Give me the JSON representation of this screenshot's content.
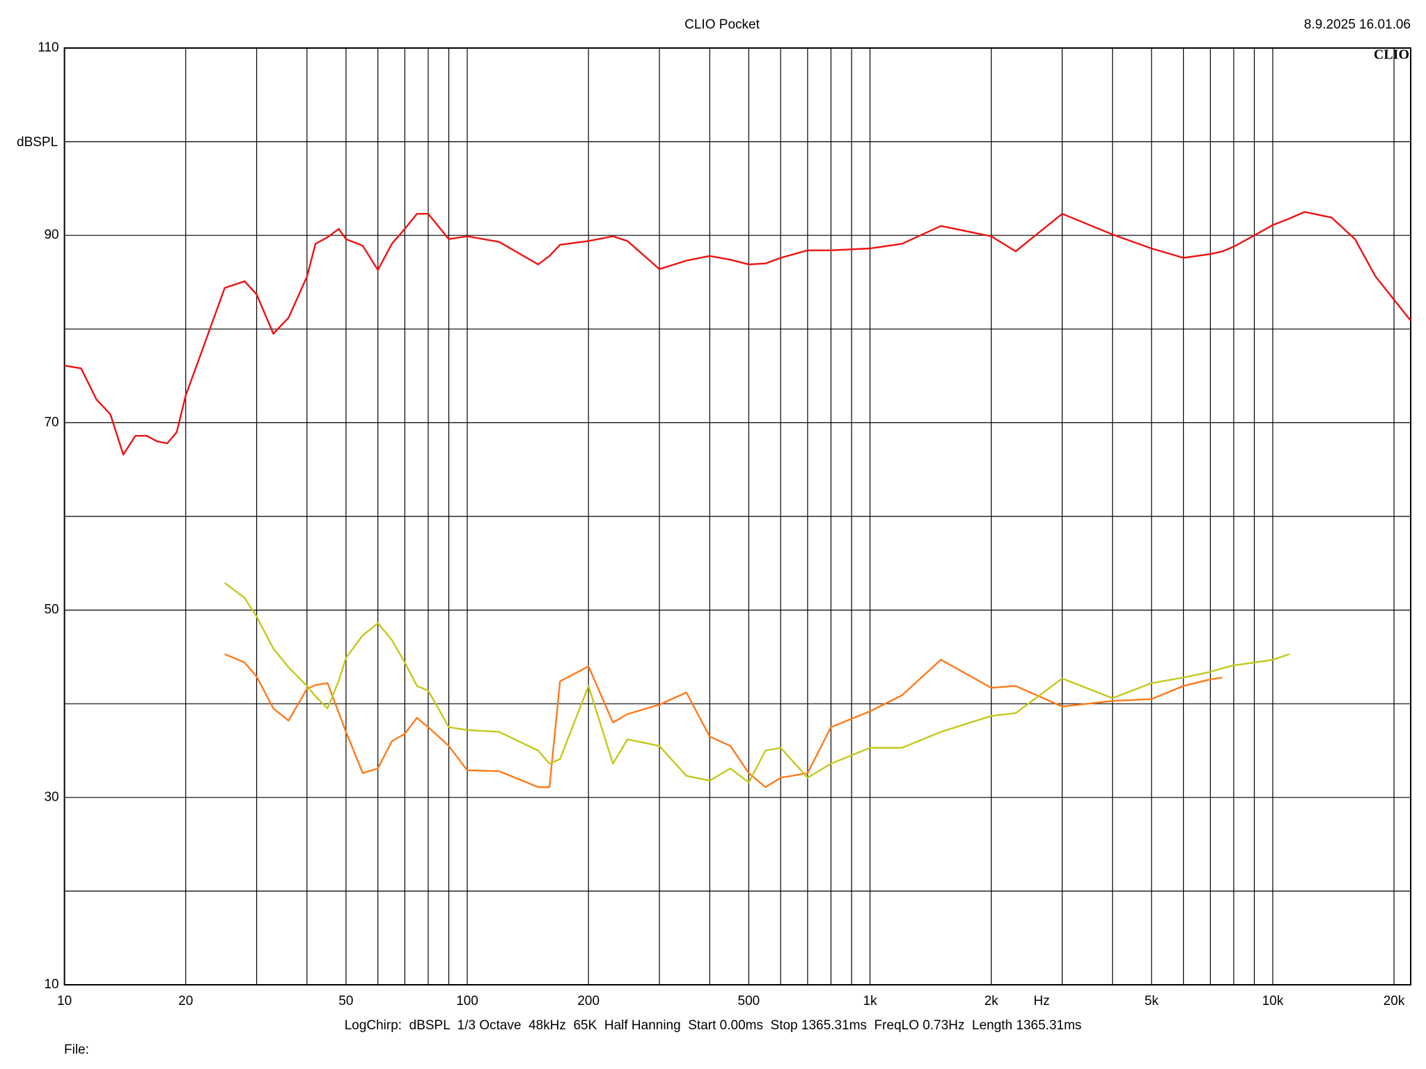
{
  "chart_data": {
    "type": "line",
    "title": "CLIO Pocket",
    "timestamp": "8.9.2025 16.01.06",
    "brand": "CLIO",
    "y_label": "dBSPL",
    "x_unit": "Hz",
    "footer": "LogChirp:  dBSPL  1/3 Octave  48kHz  65K  Half Hanning  Start 0.00ms  Stop 1365.31ms  FreqLO 0.73Hz  Length 1365.31ms",
    "file_label": "File:",
    "x_log": true,
    "xlim": [
      10,
      22000
    ],
    "ylim": [
      10,
      110
    ],
    "yticks": [
      10,
      30,
      50,
      70,
      90,
      110
    ],
    "ygrid": [
      20,
      40,
      60,
      80,
      100
    ],
    "xticks": [
      10,
      20,
      50,
      100,
      200,
      500,
      {
        "value": 1000,
        "label": "1k"
      },
      {
        "value": 2000,
        "label": "2k"
      },
      {
        "value": 5000,
        "label": "5k"
      },
      {
        "value": 10000,
        "label": "10k"
      },
      {
        "value": 20000,
        "label": "20k"
      }
    ],
    "xgrid": [
      30,
      40,
      60,
      70,
      80,
      90,
      300,
      400,
      600,
      700,
      800,
      900,
      3000,
      4000,
      6000,
      7000,
      8000,
      9000
    ],
    "grid": true,
    "x": [
      10,
      11,
      12,
      13,
      14,
      15,
      16,
      17,
      18,
      19,
      20,
      22,
      25,
      28,
      30,
      33,
      36,
      40,
      42,
      45,
      48,
      50,
      55,
      60,
      65,
      70,
      75,
      80,
      90,
      100,
      120,
      150,
      160,
      170,
      200,
      230,
      250,
      300,
      350,
      400,
      450,
      500,
      550,
      600,
      700,
      800,
      1000,
      1200,
      1500,
      2000,
      2300,
      3000,
      4000,
      5000,
      6000,
      7000,
      7500,
      8000,
      9000,
      10000,
      11000,
      12000,
      14000,
      16000,
      18000,
      22000
    ],
    "series": [
      {
        "color": "#ee1111",
        "values": [
          76.1,
          75.8,
          72.5,
          70.9,
          66.6,
          68.6,
          68.6,
          68,
          67.8,
          69,
          72.9,
          77.8,
          84.4,
          85.1,
          83.7,
          79.5,
          81.2,
          85.6,
          89.1,
          89.8,
          90.7,
          89.6,
          88.9,
          86.3,
          89.1,
          90.7,
          92.3,
          92.3,
          89.6,
          89.9,
          89.3,
          86.9,
          87.8,
          89,
          89.4,
          89.9,
          89.4,
          86.4,
          87.3,
          87.8,
          87.4,
          86.9,
          87,
          87.6,
          88.4,
          88.4,
          88.6,
          89.1,
          91,
          89.9,
          88.3,
          92.3,
          90.1,
          88.6,
          87.6,
          88,
          88.3,
          88.8,
          90,
          91.1,
          91.8,
          92.5,
          91.9,
          89.6,
          85.6,
          80.9
        ]
      },
      {
        "color": "#ff7a1a",
        "values": [
          null,
          null,
          null,
          null,
          null,
          null,
          null,
          null,
          null,
          null,
          null,
          null,
          45.3,
          44.4,
          42.9,
          39.5,
          38.2,
          41.6,
          42,
          42.2,
          39,
          37,
          32.6,
          33.1,
          36,
          36.8,
          38.5,
          37.5,
          35.5,
          32.9,
          32.8,
          31.1,
          31.1,
          42.4,
          44,
          38,
          38.9,
          39.9,
          41.2,
          36.5,
          35.5,
          32.6,
          31.1,
          32.1,
          32.6,
          37.5,
          39.2,
          40.9,
          44.7,
          41.7,
          41.9,
          39.7,
          40.3,
          40.5,
          41.9,
          42.6,
          42.8,
          null,
          null,
          null,
          null,
          null,
          null,
          null,
          null,
          null
        ]
      },
      {
        "color": "#c4c81a",
        "values": [
          null,
          null,
          null,
          null,
          null,
          null,
          null,
          null,
          null,
          null,
          null,
          null,
          52.9,
          51.3,
          49.3,
          45.9,
          43.9,
          41.9,
          40.8,
          39.5,
          42.5,
          44.9,
          47.3,
          48.6,
          46.8,
          44.4,
          41.9,
          41.4,
          37.5,
          37.2,
          37,
          35,
          33.6,
          34.1,
          41.9,
          33.6,
          36.2,
          35.5,
          32.3,
          31.8,
          33.1,
          31.6,
          35,
          35.3,
          32.1,
          33.6,
          35.3,
          35.3,
          37,
          38.7,
          39,
          42.7,
          40.6,
          42.2,
          42.8,
          43.4,
          43.8,
          44.1,
          44.4,
          44.7,
          45.3,
          null,
          null,
          null,
          null,
          null
        ]
      }
    ]
  }
}
